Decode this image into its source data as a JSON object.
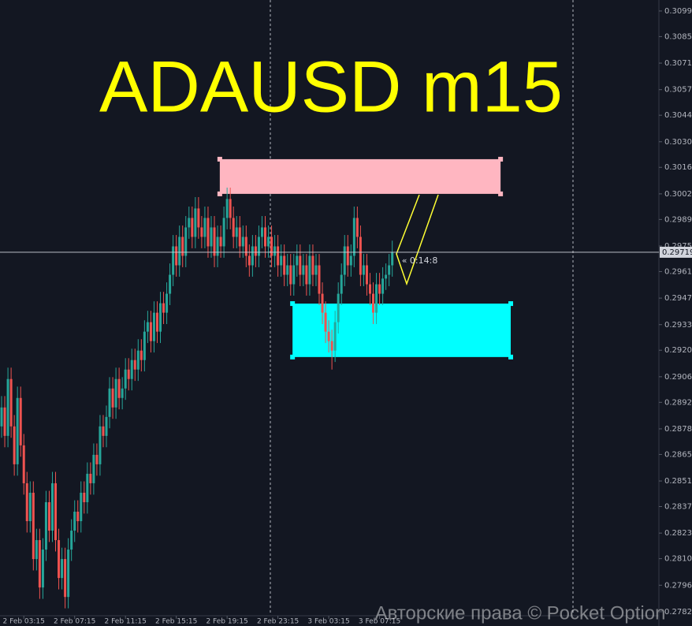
{
  "chart_data": {
    "type": "candlestick",
    "title": "ADAUSD m15",
    "colors": {
      "up": "#26a69a",
      "down": "#ef5350",
      "background": "#131722",
      "title": "#ffff00"
    },
    "ylim": [
      0.27805,
      0.3105
    ],
    "yticks": [
      0.30992,
      0.30857,
      0.30717,
      0.30577,
      0.30442,
      0.30302,
      0.30167,
      0.30027,
      0.29892,
      0.29752,
      0.29617,
      0.29477,
      0.29337,
      0.29202,
      0.29062,
      0.28927,
      0.28787,
      0.28652,
      0.28512,
      0.28377,
      0.28237,
      0.28102,
      0.27962,
      0.27822
    ],
    "xlim": [
      -0.5,
      206.7
    ],
    "xticks": [
      {
        "value": 7,
        "label": "2 Feb 03:15"
      },
      {
        "value": 23,
        "label": "2 Feb 07:15"
      },
      {
        "value": 39,
        "label": "2 Feb 11:15"
      },
      {
        "value": 55,
        "label": "2 Feb 15:15"
      },
      {
        "value": 71,
        "label": "2 Feb 19:15"
      },
      {
        "value": 87,
        "label": "2 Feb 23:15"
      },
      {
        "value": 103,
        "label": "3 Feb 03:15"
      },
      {
        "value": 119,
        "label": "3 Feb 07:15"
      }
    ],
    "current_price": 0.29719,
    "timer": "« 0:14:8",
    "watermark": "Авторские права © Pocket Option",
    "zones": [
      {
        "x": [
          68.7,
          157.1
        ],
        "y": [
          0.3021,
          0.30027
        ],
        "color": "#ffb6c1"
      },
      {
        "x": [
          91.6,
          160.3
        ],
        "y": [
          0.29448,
          0.29166
        ],
        "color": "#00ffff"
      }
    ],
    "candles": [
      [
        0.288,
        0.2896,
        0.2874,
        0.289
      ],
      [
        0.289,
        0.2896,
        0.2869,
        0.2875
      ],
      [
        0.2875,
        0.2911,
        0.2869,
        0.2905
      ],
      [
        0.2905,
        0.2911,
        0.2874,
        0.288
      ],
      [
        0.288,
        0.2886,
        0.2854,
        0.286
      ],
      [
        0.286,
        0.2901,
        0.2854,
        0.2895
      ],
      [
        0.2895,
        0.2901,
        0.2864,
        0.287
      ],
      [
        0.287,
        0.2876,
        0.2844,
        0.285
      ],
      [
        0.285,
        0.2856,
        0.2824,
        0.283
      ],
      [
        0.283,
        0.2851,
        0.2824,
        0.2845
      ],
      [
        0.2845,
        0.2851,
        0.2804,
        0.281
      ],
      [
        0.281,
        0.2826,
        0.2804,
        0.282
      ],
      [
        0.282,
        0.2826,
        0.2789,
        0.2795
      ],
      [
        0.2795,
        0.2821,
        0.2789,
        0.2815
      ],
      [
        0.2815,
        0.2846,
        0.2809,
        0.284
      ],
      [
        0.284,
        0.2846,
        0.2819,
        0.2825
      ],
      [
        0.2825,
        0.2856,
        0.2819,
        0.285
      ],
      [
        0.285,
        0.2856,
        0.2814,
        0.282
      ],
      [
        0.282,
        0.2826,
        0.2794,
        0.28
      ],
      [
        0.28,
        0.2816,
        0.2794,
        0.281
      ],
      [
        0.281,
        0.2816,
        0.2784,
        0.279
      ],
      [
        0.279,
        0.2821,
        0.2784,
        0.2815
      ],
      [
        0.2815,
        0.2831,
        0.2809,
        0.2825
      ],
      [
        0.2825,
        0.2841,
        0.2819,
        0.2835
      ],
      [
        0.2835,
        0.2841,
        0.2824,
        0.283
      ],
      [
        0.283,
        0.2851,
        0.2824,
        0.2845
      ],
      [
        0.2845,
        0.2851,
        0.2834,
        0.284
      ],
      [
        0.284,
        0.2861,
        0.2834,
        0.2855
      ],
      [
        0.2855,
        0.2861,
        0.2844,
        0.285
      ],
      [
        0.285,
        0.2871,
        0.2844,
        0.2865
      ],
      [
        0.2865,
        0.2871,
        0.2854,
        0.286
      ],
      [
        0.286,
        0.2886,
        0.2854,
        0.288
      ],
      [
        0.288,
        0.2886,
        0.2869,
        0.2875
      ],
      [
        0.2875,
        0.2891,
        0.2869,
        0.2885
      ],
      [
        0.2885,
        0.2906,
        0.2879,
        0.29
      ],
      [
        0.29,
        0.2906,
        0.2884,
        0.289
      ],
      [
        0.289,
        0.2911,
        0.2884,
        0.2905
      ],
      [
        0.2905,
        0.2911,
        0.2889,
        0.2895
      ],
      [
        0.2895,
        0.2906,
        0.2889,
        0.29
      ],
      [
        0.29,
        0.2916,
        0.2894,
        0.291
      ],
      [
        0.291,
        0.2916,
        0.2899,
        0.2905
      ],
      [
        0.2905,
        0.2921,
        0.2899,
        0.2915
      ],
      [
        0.2915,
        0.2921,
        0.2904,
        0.291
      ],
      [
        0.291,
        0.2926,
        0.2904,
        0.292
      ],
      [
        0.292,
        0.2926,
        0.2909,
        0.2915
      ],
      [
        0.2915,
        0.2936,
        0.2909,
        0.293
      ],
      [
        0.293,
        0.2941,
        0.2924,
        0.2935
      ],
      [
        0.2935,
        0.2941,
        0.2919,
        0.2925
      ],
      [
        0.2925,
        0.2946,
        0.2919,
        0.294
      ],
      [
        0.294,
        0.2946,
        0.2924,
        0.293
      ],
      [
        0.293,
        0.2951,
        0.2924,
        0.2945
      ],
      [
        0.2945,
        0.2951,
        0.2934,
        0.294
      ],
      [
        0.294,
        0.2956,
        0.2934,
        0.295
      ],
      [
        0.295,
        0.2966,
        0.2944,
        0.296
      ],
      [
        0.296,
        0.2981,
        0.2954,
        0.2975
      ],
      [
        0.2975,
        0.2981,
        0.2959,
        0.2965
      ],
      [
        0.2965,
        0.2986,
        0.2959,
        0.298
      ],
      [
        0.298,
        0.2986,
        0.2964,
        0.297
      ],
      [
        0.297,
        0.2991,
        0.2964,
        0.2985
      ],
      [
        0.2985,
        0.2996,
        0.2979,
        0.299
      ],
      [
        0.299,
        0.2996,
        0.2974,
        0.298
      ],
      [
        0.298,
        0.3001,
        0.2974,
        0.2995
      ],
      [
        0.2995,
        0.3001,
        0.2979,
        0.2985
      ],
      [
        0.2985,
        0.2991,
        0.2974,
        0.298
      ],
      [
        0.298,
        0.2996,
        0.2974,
        0.299
      ],
      [
        0.299,
        0.2996,
        0.2969,
        0.2975
      ],
      [
        0.2975,
        0.2991,
        0.2969,
        0.2985
      ],
      [
        0.2985,
        0.2991,
        0.2964,
        0.297
      ],
      [
        0.297,
        0.2986,
        0.2964,
        0.298
      ],
      [
        0.298,
        0.2986,
        0.2969,
        0.2975
      ],
      [
        0.2975,
        0.2996,
        0.2969,
        0.299
      ],
      [
        0.299,
        0.3006,
        0.2984,
        0.3
      ],
      [
        0.3,
        0.3006,
        0.2984,
        0.299
      ],
      [
        0.299,
        0.2996,
        0.2974,
        0.298
      ],
      [
        0.298,
        0.2991,
        0.2974,
        0.2985
      ],
      [
        0.2985,
        0.2991,
        0.2969,
        0.2975
      ],
      [
        0.2975,
        0.2986,
        0.2969,
        0.298
      ],
      [
        0.298,
        0.2986,
        0.2964,
        0.297
      ],
      [
        0.297,
        0.2976,
        0.2959,
        0.2965
      ],
      [
        0.2965,
        0.2981,
        0.2959,
        0.2975
      ],
      [
        0.2975,
        0.2981,
        0.2964,
        0.297
      ],
      [
        0.297,
        0.2986,
        0.2964,
        0.298
      ],
      [
        0.298,
        0.2991,
        0.2974,
        0.2985
      ],
      [
        0.2985,
        0.2991,
        0.2969,
        0.2975
      ],
      [
        0.2975,
        0.2986,
        0.2969,
        0.298
      ],
      [
        0.298,
        0.2986,
        0.2964,
        0.297
      ],
      [
        0.297,
        0.2981,
        0.2964,
        0.2975
      ],
      [
        0.2975,
        0.2981,
        0.2959,
        0.2965
      ],
      [
        0.2965,
        0.2976,
        0.2959,
        0.297
      ],
      [
        0.297,
        0.2976,
        0.2954,
        0.296
      ],
      [
        0.296,
        0.2971,
        0.2954,
        0.2965
      ],
      [
        0.2965,
        0.2971,
        0.2949,
        0.2955
      ],
      [
        0.2955,
        0.2971,
        0.2949,
        0.2965
      ],
      [
        0.2965,
        0.2976,
        0.2959,
        0.297
      ],
      [
        0.297,
        0.2976,
        0.2954,
        0.296
      ],
      [
        0.296,
        0.2971,
        0.2954,
        0.2965
      ],
      [
        0.2965,
        0.2971,
        0.2949,
        0.2955
      ],
      [
        0.2955,
        0.2976,
        0.2949,
        0.297
      ],
      [
        0.297,
        0.2976,
        0.2954,
        0.296
      ],
      [
        0.296,
        0.2971,
        0.2954,
        0.2965
      ],
      [
        0.2965,
        0.2971,
        0.2944,
        0.295
      ],
      [
        0.295,
        0.2956,
        0.2934,
        0.294
      ],
      [
        0.294,
        0.2946,
        0.2924,
        0.293
      ],
      [
        0.293,
        0.2936,
        0.2919,
        0.2925
      ],
      [
        0.2925,
        0.2931,
        0.291,
        0.292
      ],
      [
        0.292,
        0.2941,
        0.2914,
        0.2935
      ],
      [
        0.2935,
        0.2956,
        0.2929,
        0.295
      ],
      [
        0.295,
        0.2966,
        0.2944,
        0.296
      ],
      [
        0.296,
        0.2981,
        0.2954,
        0.2975
      ],
      [
        0.2975,
        0.2981,
        0.2959,
        0.2965
      ],
      [
        0.2965,
        0.2976,
        0.2959,
        0.297
      ],
      [
        0.297,
        0.2996,
        0.2964,
        0.299
      ],
      [
        0.299,
        0.2996,
        0.2974,
        0.298
      ],
      [
        0.298,
        0.2986,
        0.2954,
        0.296
      ],
      [
        0.296,
        0.2971,
        0.2954,
        0.2965
      ],
      [
        0.2965,
        0.2971,
        0.2949,
        0.2955
      ],
      [
        0.2955,
        0.2961,
        0.2944,
        0.295
      ],
      [
        0.295,
        0.2956,
        0.2934,
        0.294
      ],
      [
        0.294,
        0.2961,
        0.2934,
        0.2955
      ],
      [
        0.2955,
        0.2961,
        0.2944,
        0.295
      ],
      [
        0.295,
        0.2964,
        0.2944,
        0.2958
      ],
      [
        0.2958,
        0.2966,
        0.2952,
        0.296
      ],
      [
        0.296,
        0.2971,
        0.2954,
        0.2965
      ],
      [
        0.2965,
        0.2978,
        0.2959,
        0.29719
      ]
    ]
  }
}
